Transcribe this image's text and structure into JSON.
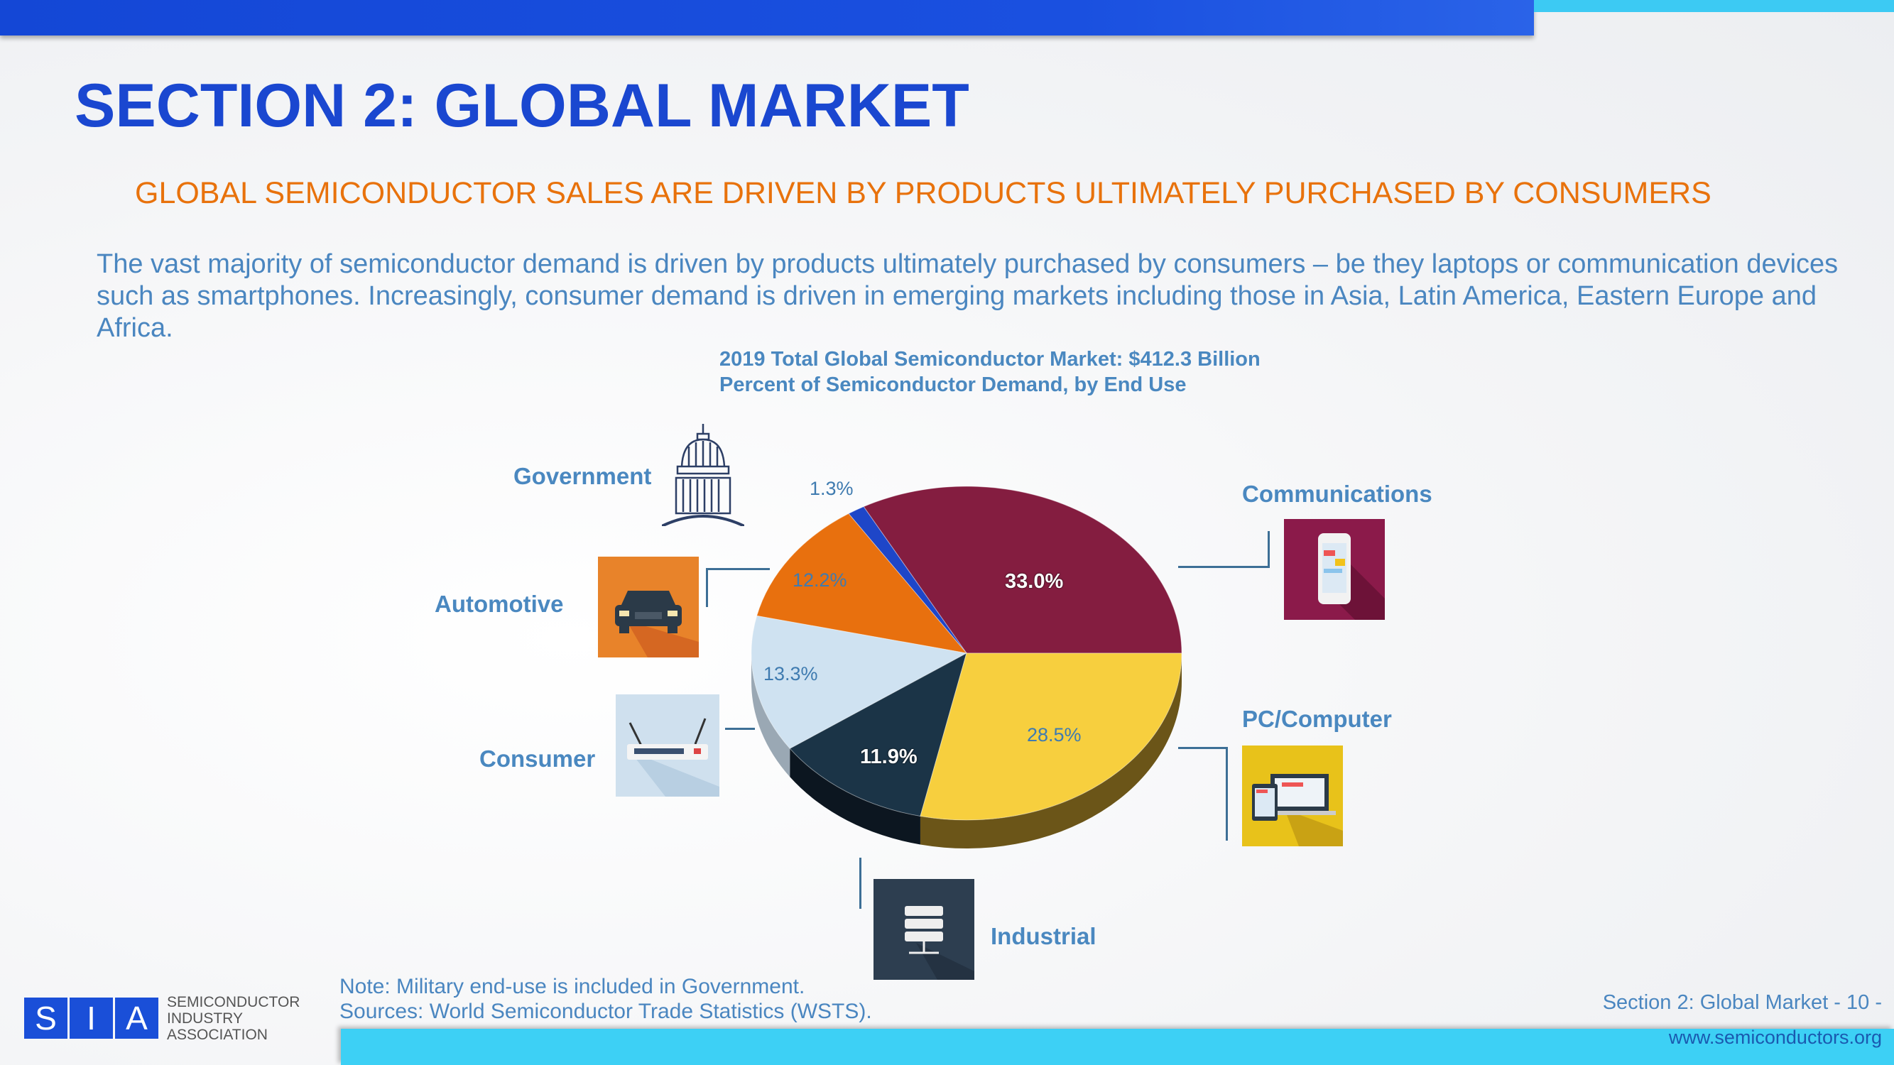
{
  "header": {
    "title": "SECTION 2: GLOBAL MARKET",
    "subtitle": "GLOBAL SEMICONDUCTOR SALES ARE DRIVEN BY PRODUCTS ULTIMATELY PURCHASED BY CONSUMERS",
    "body": "The vast majority of semiconductor demand is driven by products ultimately purchased by consumers – be they laptops or communication devices such as smartphones. Increasingly, consumer demand is driven in emerging markets including those in Asia, Latin America, Eastern Europe and Africa."
  },
  "chart_data": {
    "type": "pie",
    "title": "2019 Total Global Semiconductor Market: $412.3 Billion",
    "subtitle": "Percent of Semiconductor Demand, by End Use",
    "slices": [
      {
        "name": "Communications",
        "value": 33.0,
        "label": "33.0%",
        "color": "#841d40",
        "side": "#5a1230",
        "icon": "smartphone-icon"
      },
      {
        "name": "Government",
        "value": 1.3,
        "label": "1.3%",
        "color": "#1e46c8",
        "side": "#12308a",
        "icon": "capitol-building-icon"
      },
      {
        "name": "Automotive",
        "value": 12.2,
        "label": "12.2%",
        "color": "#e8700e",
        "side": "#a04c0a",
        "icon": "car-icon"
      },
      {
        "name": "Consumer",
        "value": 13.3,
        "label": "13.3%",
        "color": "#cfe2f1",
        "side": "#9aa8b4",
        "icon": "router-icon"
      },
      {
        "name": "Industrial",
        "value": 11.9,
        "label": "11.9%",
        "color": "#1b3447",
        "side": "#0c1620",
        "icon": "server-icon"
      },
      {
        "name": "PC/Computer",
        "value": 28.5,
        "label": "28.5%",
        "color": "#f7cf3e",
        "side": "#6b5518",
        "icon": "laptop-icon"
      }
    ]
  },
  "footer": {
    "note": "Note: Military end-use is included in Government.",
    "sources": "Sources: World Semiconductor Trade Statistics (WSTS).",
    "page": "Section 2: Global Market - 10 -",
    "url": "www.semiconductors.org",
    "logo_letters": [
      "S",
      "I",
      "A"
    ],
    "logo_text": [
      "SEMICONDUCTOR",
      "INDUSTRY",
      "ASSOCIATION"
    ]
  }
}
